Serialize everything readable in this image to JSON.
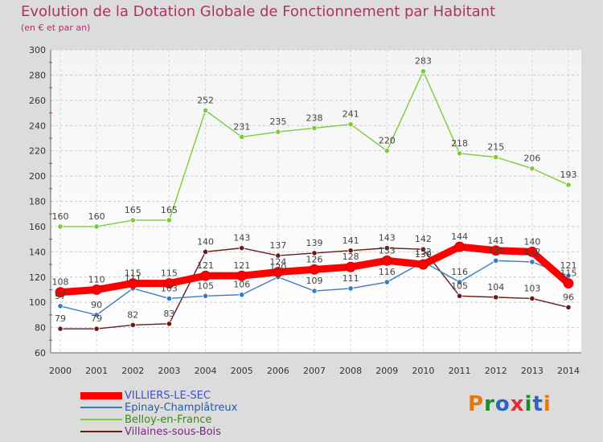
{
  "title": "Evolution de la Dotation Globale de Fonctionnement par Habitant",
  "subtitle": "(en € et par an)",
  "logo": {
    "letters": [
      "P",
      "r",
      "o",
      "x",
      "i",
      "t",
      "i"
    ],
    "colors": [
      "#e07a10",
      "#1e8a2e",
      "#2a66c0",
      "#e03040",
      "#1e8a2e",
      "#2a66c0",
      "#e07a10"
    ]
  },
  "chart_data": {
    "type": "line",
    "x": [
      2000,
      2001,
      2002,
      2003,
      2004,
      2005,
      2006,
      2007,
      2008,
      2009,
      2010,
      2011,
      2012,
      2013,
      2014
    ],
    "ylim": [
      60,
      300
    ],
    "yticks": [
      60,
      80,
      100,
      120,
      140,
      160,
      180,
      200,
      220,
      240,
      260,
      280,
      300
    ],
    "grid": true,
    "legend_position": "bottom-left",
    "series": [
      {
        "name": "Villaines-sous-Bois",
        "color": "#6b1a1a",
        "values": [
          79,
          79,
          82,
          83,
          140,
          143,
          137,
          139,
          141,
          143,
          142,
          105,
          104,
          103,
          96
        ],
        "labels": [
          "79",
          "79",
          "82",
          "83",
          "140",
          "143",
          "137",
          "139",
          "141",
          "143",
          "142",
          "105",
          "104",
          "103",
          "96"
        ]
      },
      {
        "name": "Epinay-Champlâtreux",
        "color": "#3a7cc4",
        "values": [
          97,
          90,
          111,
          103,
          105,
          106,
          120,
          109,
          111,
          116,
          132,
          116,
          133,
          132,
          121
        ],
        "labels": [
          "97",
          "90",
          "111",
          "103",
          "105",
          "106",
          "120",
          "109",
          "111",
          "116",
          "132",
          "116",
          "133",
          "132",
          "121"
        ]
      },
      {
        "name": "Belloy-en-France",
        "color": "#7ccc3a",
        "values": [
          160,
          160,
          165,
          165,
          252,
          231,
          235,
          238,
          241,
          220,
          283,
          218,
          215,
          206,
          193
        ],
        "labels": [
          "160",
          "160",
          "165",
          "165",
          "252",
          "231",
          "235",
          "238",
          "241",
          "220",
          "283",
          "218",
          "215",
          "206",
          "193"
        ]
      },
      {
        "name": "VILLIERS-LE-SEC",
        "color": "#ff0000",
        "values": [
          108,
          110,
          115,
          115,
          121,
          121,
          124,
          126,
          128,
          133,
          130,
          144,
          141,
          140,
          115
        ],
        "labels": [
          "108",
          "110",
          "115",
          "115",
          "121",
          "121",
          "124",
          "126",
          "128",
          "133",
          "130",
          "144",
          "141",
          "140",
          "115"
        ]
      }
    ],
    "legend": [
      {
        "name": "VILLIERS-LE-SEC",
        "color": "#ff0000",
        "width": 9
      },
      {
        "name": "Epinay-Champlâtreux",
        "color": "#3a7cc4",
        "width": 2
      },
      {
        "name": "Belloy-en-France",
        "color": "#7ccc3a",
        "width": 2
      },
      {
        "name": "Villaines-sous-Bois",
        "color": "#6b1a1a",
        "width": 2
      }
    ]
  }
}
